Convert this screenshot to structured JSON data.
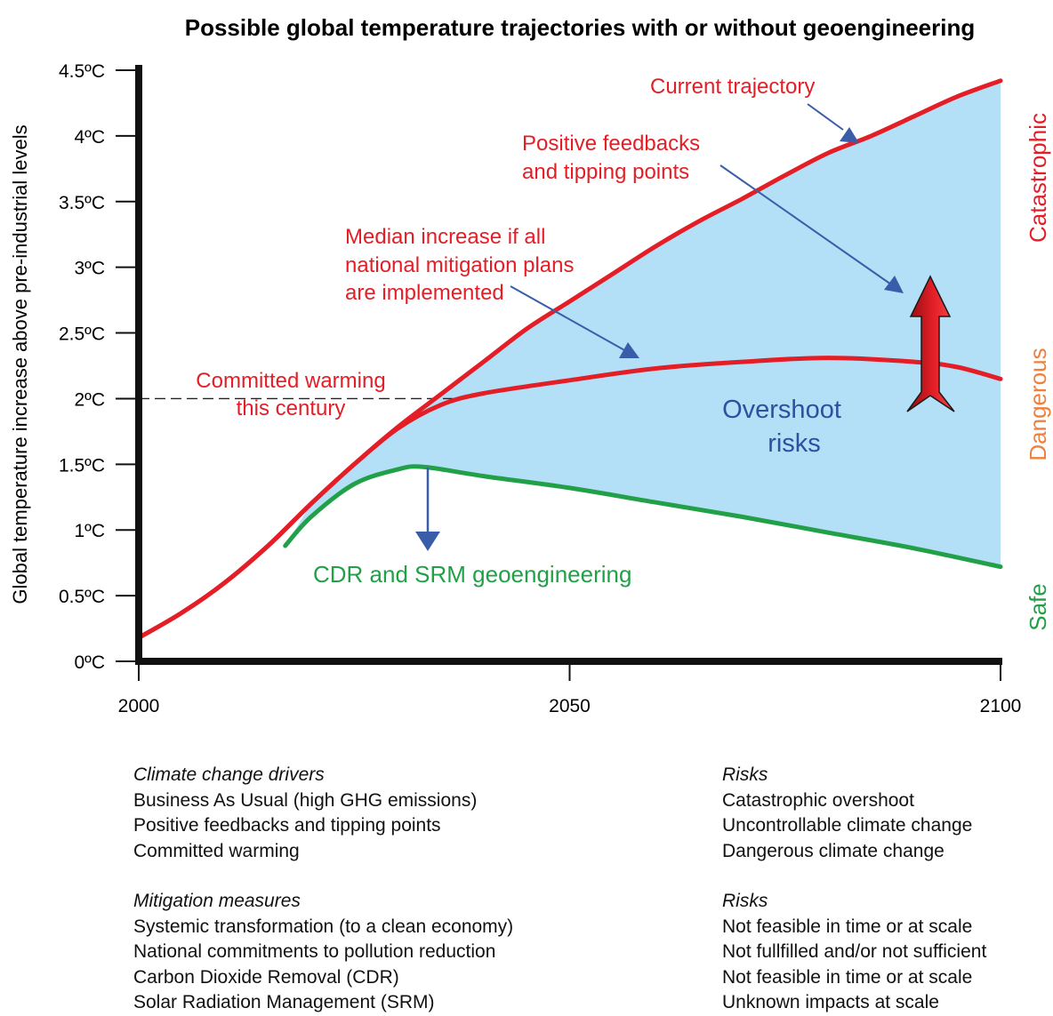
{
  "chart_data": {
    "type": "line",
    "title": "Possible global temperature trajectories with or without geoengineering",
    "ylabel": "Global temperature increase above pre-industrial levels",
    "xlabel": "",
    "xlim": [
      2000,
      2100
    ],
    "ylim": [
      0,
      4.5
    ],
    "x_ticks": [
      "2000",
      "2050",
      "2100"
    ],
    "y_ticks": [
      "0ºC",
      "0.5ºC",
      "1ºC",
      "1.5ºC",
      "2ºC",
      "2.5ºC",
      "3ºC",
      "3.5ºC",
      "4ºC",
      "4.5ºC"
    ],
    "series": [
      {
        "name": "Current trajectory",
        "color": "#e41e26",
        "x": [
          2000,
          2005,
          2010,
          2015,
          2020,
          2025,
          2030,
          2035,
          2040,
          2045,
          2050,
          2055,
          2060,
          2065,
          2070,
          2075,
          2080,
          2085,
          2090,
          2095,
          2100
        ],
        "y": [
          0.18,
          0.37,
          0.6,
          0.88,
          1.2,
          1.5,
          1.78,
          2.03,
          2.28,
          2.53,
          2.74,
          2.95,
          3.16,
          3.35,
          3.52,
          3.7,
          3.87,
          4.0,
          4.15,
          4.3,
          4.42
        ]
      },
      {
        "name": "Median increase if all national mitigation plans are implemented",
        "color": "#e41e26",
        "x": [
          2000,
          2005,
          2010,
          2015,
          2020,
          2025,
          2030,
          2035,
          2040,
          2050,
          2060,
          2070,
          2080,
          2090,
          2095,
          2100
        ],
        "y": [
          0.18,
          0.37,
          0.6,
          0.88,
          1.2,
          1.5,
          1.77,
          1.95,
          2.04,
          2.14,
          2.23,
          2.28,
          2.31,
          2.28,
          2.24,
          2.15
        ]
      },
      {
        "name": "CDR and SRM geoengineering",
        "color": "#21a048",
        "x": [
          2017,
          2020,
          2025,
          2030,
          2033,
          2040,
          2050,
          2060,
          2070,
          2080,
          2090,
          2100
        ],
        "y": [
          0.88,
          1.1,
          1.35,
          1.46,
          1.48,
          1.41,
          1.32,
          1.21,
          1.1,
          0.98,
          0.86,
          0.72
        ]
      }
    ],
    "shaded_region": {
      "name": "Overshoot risks",
      "color": "#b3e0f7",
      "upper": "Current trajectory",
      "lower": "CDR and SRM geoengineering"
    },
    "committed_warming": {
      "y": 2.0,
      "x_range": [
        2000,
        2037
      ],
      "style": "dashed",
      "color": "#222222"
    },
    "annotations": {
      "current_trajectory": "Current trajectory",
      "positive_feedbacks_line1": "Positive feedbacks",
      "positive_feedbacks_line2": "and tipping points",
      "median_line1": "Median increase if all",
      "median_line2": "national mitigation plans",
      "median_line3": "are implemented",
      "committed_line1": "Committed warming",
      "committed_line2": "this century",
      "overshoot_line1": "Overshoot",
      "overshoot_line2": "risks",
      "geoengineering": "CDR and SRM geoengineering"
    },
    "risk_zones": [
      {
        "label": "Catastrophic",
        "color": "#e41e26"
      },
      {
        "label": "Dangerous",
        "color": "#f07f3c"
      },
      {
        "label": "Safe",
        "color": "#21a048"
      }
    ],
    "colors": {
      "red": "#e41e26",
      "green": "#21a048",
      "blue_arrow": "#3a5da9",
      "overshoot_text": "#2f4fa0",
      "fill": "#b3e0f7"
    }
  },
  "legend": {
    "drivers_header": "Climate change drivers",
    "drivers": [
      "Business As Usual (high GHG emissions)",
      "Positive feedbacks and tipping points",
      "Committed warming"
    ],
    "risks1_header": "Risks",
    "risks1": [
      "Catastrophic overshoot",
      "Uncontrollable climate change",
      "Dangerous climate change"
    ],
    "mitigation_header": "Mitigation measures",
    "mitigation": [
      "Systemic transformation (to a clean economy)",
      "National commitments to pollution reduction",
      "Carbon Dioxide Removal (CDR)",
      "Solar Radiation Management (SRM)"
    ],
    "risks2_header": "Risks",
    "risks2": [
      "Not feasible in time or at scale",
      "Not fullfilled and/or not sufficient",
      "Not feasible in time or at scale",
      "Unknown impacts at scale"
    ]
  }
}
